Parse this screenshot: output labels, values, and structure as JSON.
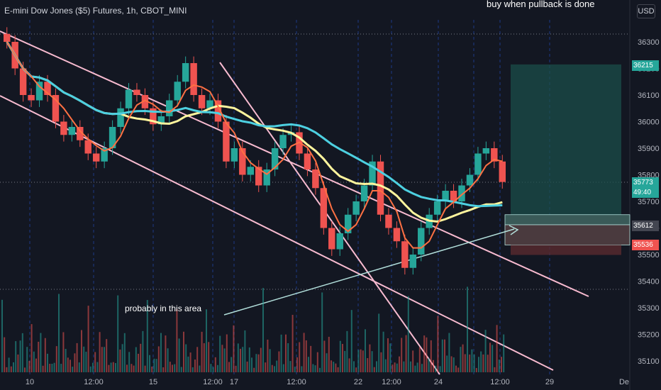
{
  "header": {
    "title": "E-mini Dow Jones ($5) Futures, 1h, CBOT_MINI",
    "currency": "USD"
  },
  "annotations": {
    "top": "buy when pullback is done",
    "bottom": "probably in this area"
  },
  "price_tags": {
    "target": "36215",
    "last": "35773",
    "countdown": "49:40",
    "entry": "35612",
    "stop": "35536"
  },
  "colors": {
    "background": "#131722",
    "up": "#26a69a",
    "down": "#ef5350",
    "channel": "#f8bbd0",
    "ma_yellow": "#fff59d",
    "ma_cyan": "#4dd0e1",
    "target_zone": "#1b4d4a",
    "stop_zone": "#5a2a30"
  },
  "chart_data": {
    "type": "candlestick",
    "symbol": "E-mini Dow Jones ($5) Futures",
    "interval": "1h",
    "ylim": [
      35050,
      36380
    ],
    "y_ticks": [
      36300,
      36200,
      36100,
      36000,
      35900,
      35800,
      35700,
      35600,
      35500,
      35400,
      35300,
      35200,
      35100
    ],
    "x_ticks": [
      "10",
      "12:00",
      "15",
      "12:00",
      "17",
      "12:00",
      "22",
      "12:00",
      "24",
      "12:00",
      "29",
      "De"
    ],
    "close_series": [
      36300,
      36200,
      36100,
      36080,
      36150,
      36100,
      36000,
      35950,
      35980,
      35930,
      35880,
      35850,
      35900,
      35980,
      36050,
      36120,
      36100,
      36050,
      35990,
      36020,
      36080,
      36150,
      36220,
      36100,
      36050,
      36080,
      36000,
      35850,
      35900,
      35800,
      35830,
      35760,
      35820,
      35900,
      35950,
      35960,
      35880,
      35820,
      35750,
      35600,
      35520,
      35580,
      35650,
      35700,
      35760,
      35850,
      35650,
      35600,
      35550,
      35450,
      35500,
      35600,
      35650,
      35700,
      35740,
      35700,
      35760,
      35800,
      35880,
      35900,
      35850,
      35773
    ],
    "position": {
      "target": 36215,
      "entry": 35612,
      "stop": 35536
    },
    "last_price": 35773
  }
}
